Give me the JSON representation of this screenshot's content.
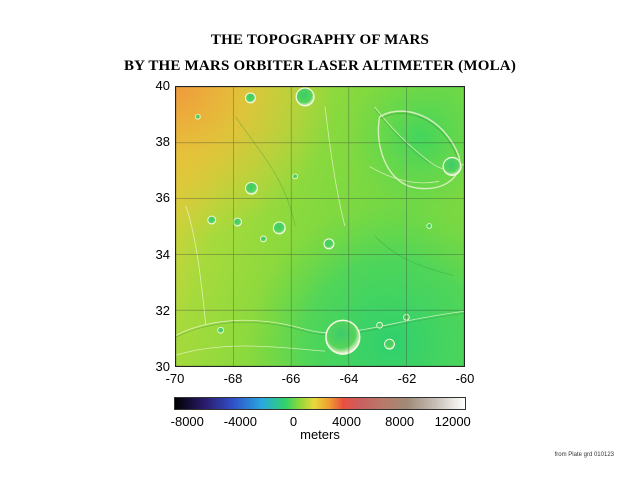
{
  "title_line1": "THE TOPOGRAPHY OF MARS",
  "title_line2": "BY THE MARS ORBITER LASER ALTIMETER (MOLA)",
  "axes": {
    "x_ticks": [
      "-70",
      "-68",
      "-66",
      "-64",
      "-62",
      "-60"
    ],
    "y_ticks": [
      "40",
      "38",
      "36",
      "34",
      "32",
      "30"
    ],
    "xlim": [
      -70,
      -60
    ],
    "ylim": [
      30,
      40
    ]
  },
  "colorbar": {
    "ticks": [
      "-8000",
      "-4000",
      "0",
      "4000",
      "8000",
      "12000"
    ],
    "unit": "meters",
    "range": [
      -9000,
      13000
    ]
  },
  "credit": "from Plate grd 010123",
  "colors": {
    "low": "#2fd36a",
    "mid": "#8fd83a",
    "high": "#e8c63a",
    "highest": "#f0a040"
  }
}
